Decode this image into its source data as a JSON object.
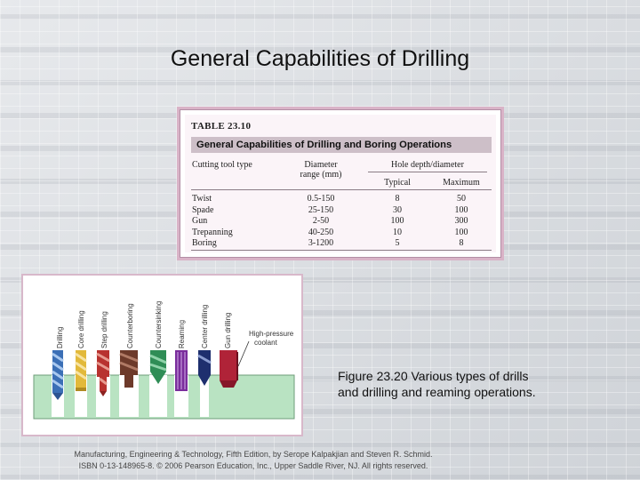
{
  "slide": {
    "title": "General Capabilities of Drilling"
  },
  "table": {
    "label": "TABLE 23.10",
    "caption": "General Capabilities of Drilling and Boring Operations",
    "headers": {
      "tool": "Cutting tool type",
      "diameter_line1": "Diameter",
      "diameter_line2": "range (mm)",
      "hole_depth": "Hole depth/diameter",
      "typical": "Typical",
      "maximum": "Maximum"
    },
    "rows": [
      {
        "tool": "Twist",
        "diameter": "0.5-150",
        "typical": "8",
        "maximum": "50"
      },
      {
        "tool": "Spade",
        "diameter": "25-150",
        "typical": "30",
        "maximum": "100"
      },
      {
        "tool": "Gun",
        "diameter": "2-50",
        "typical": "100",
        "maximum": "300"
      },
      {
        "tool": "Trepanning",
        "diameter": "40-250",
        "typical": "10",
        "maximum": "100"
      },
      {
        "tool": "Boring",
        "diameter": "3-1200",
        "typical": "5",
        "maximum": "8"
      }
    ]
  },
  "figure": {
    "drill_labels": [
      "Drilling",
      "Core drilling",
      "Step drilling",
      "Counterboring",
      "Countersinking",
      "Reaming",
      "Center drilling",
      "Gun drilling"
    ],
    "coolant_label_line1": "High-pressure",
    "coolant_label_line2": "coolant",
    "caption_line1": "Figure 23.20  Various types of drills",
    "caption_line2": "and drilling and reaming operations."
  },
  "footer": {
    "line1": "Manufacturing, Engineering & Technology, Fifth Edition, by Serope Kalpakjian and Steven R. Schmid.",
    "line2": "ISBN 0-13-148965-8. © 2006 Pearson Education, Inc., Upper Saddle River, NJ.  All rights reserved."
  },
  "colors": {
    "panel_border": "#d9b3c7",
    "caption_band": "#cdbfc8",
    "workpiece": "#b9e3c2",
    "drill_blue": "#3b6fb6",
    "drill_yellow": "#e2b93b",
    "drill_red": "#b8322f",
    "drill_brown": "#6d3a2a",
    "drill_green": "#2f8d56",
    "drill_purple": "#7a2d9c",
    "drill_navy": "#1e2f6e",
    "drill_crimson": "#b02338"
  }
}
